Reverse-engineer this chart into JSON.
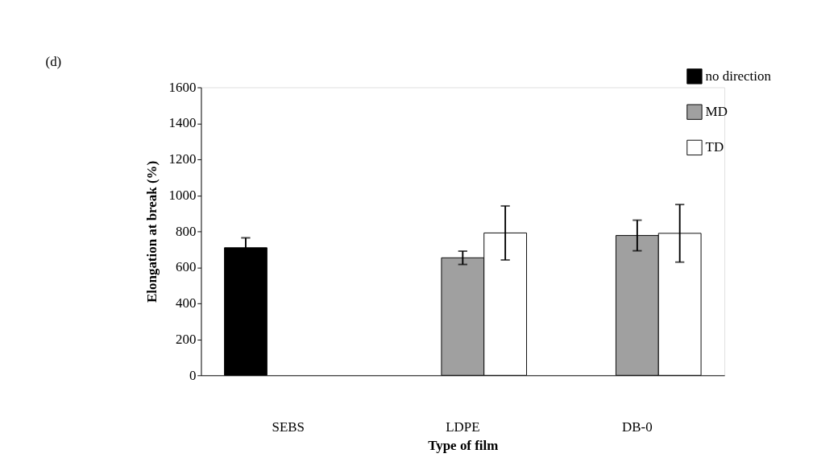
{
  "chart_data": {
    "type": "bar",
    "xlabel": "Type of film",
    "ylabel": "Elongation at break (%)",
    "annotations": [
      "(d)"
    ],
    "categories": [
      "SEBS",
      "LDPE",
      "DB-0"
    ],
    "series": [
      {
        "name": "no direction",
        "color": "#000000",
        "values": [
          709,
          null,
          null
        ],
        "errors": [
          55,
          null,
          null
        ]
      },
      {
        "name": "MD",
        "color": "#a0a0a0",
        "values": [
          null,
          653,
          777
        ],
        "errors": [
          null,
          37,
          85
        ]
      },
      {
        "name": "TD",
        "color": "#ffffff",
        "values": [
          null,
          791,
          789
        ],
        "errors": [
          null,
          150,
          160
        ]
      }
    ],
    "ylim": [
      0,
      1600
    ],
    "yticks": [
      0,
      200,
      400,
      600,
      800,
      1000,
      1200,
      1400,
      1600
    ],
    "grid": false,
    "legend": "top right"
  }
}
